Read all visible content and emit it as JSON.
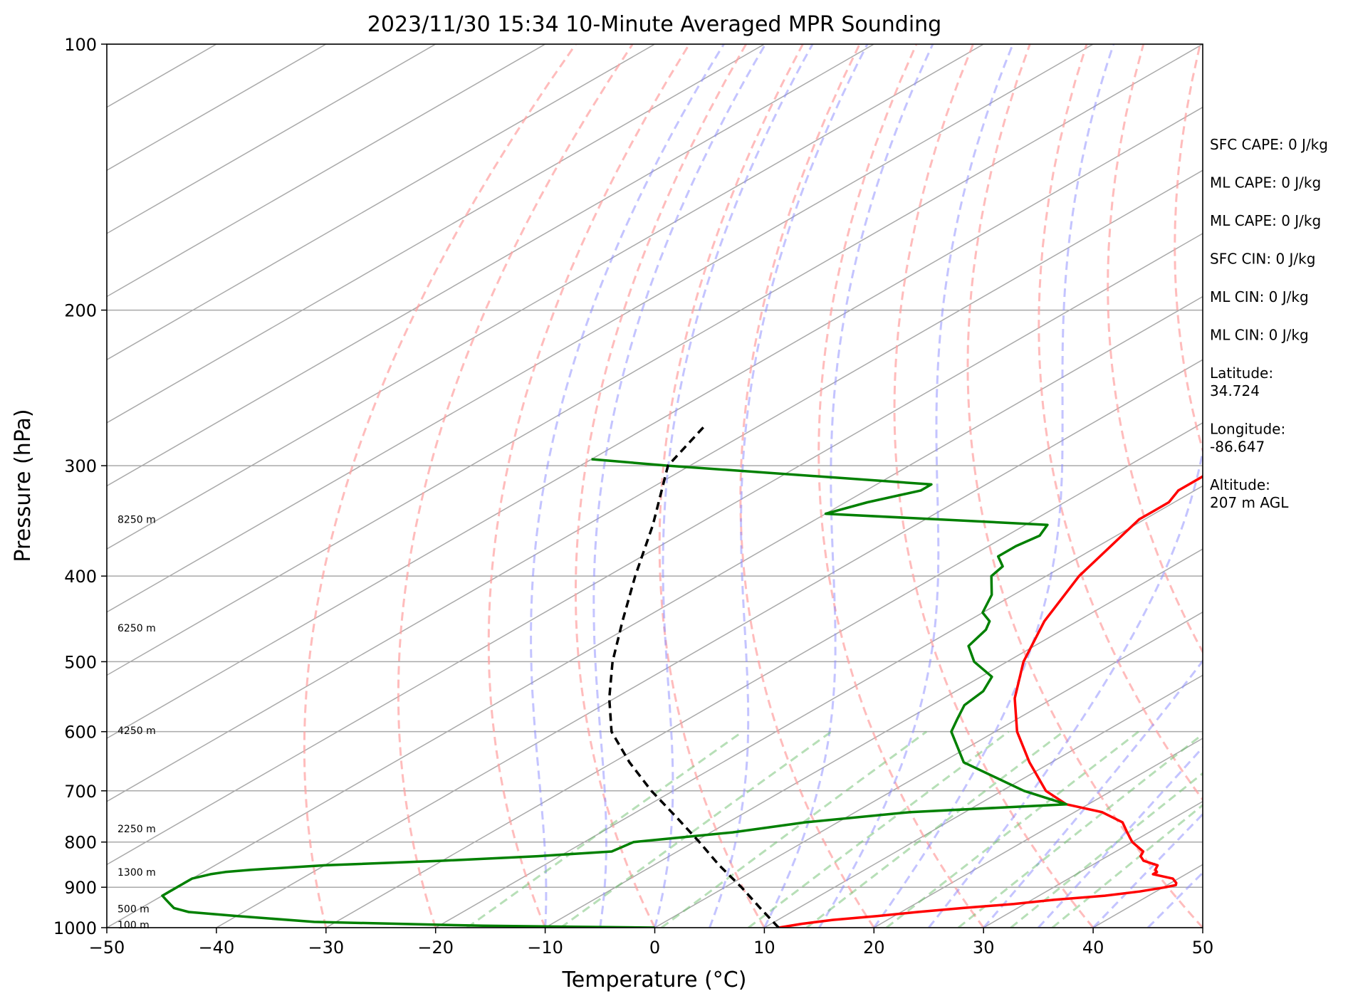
{
  "chart_data": {
    "type": "skew-t",
    "title": "2023/11/30 15:34 10-Minute Averaged MPR Sounding",
    "xlabel": "Temperature (°C)",
    "ylabel": "Pressure (hPa)",
    "xlim": [
      -50,
      50
    ],
    "ylim_hpa": [
      1000,
      100
    ],
    "y_scale": "log",
    "skew_deg_per_log10": 140,
    "x_ticks": [
      -50,
      -40,
      -30,
      -20,
      -10,
      0,
      10,
      20,
      30,
      40,
      50
    ],
    "x_tick_labels": [
      "−50",
      "−40",
      "−30",
      "−20",
      "−10",
      "0",
      "10",
      "20",
      "30",
      "40",
      "50"
    ],
    "y_ticks": [
      1000,
      900,
      800,
      700,
      600,
      500,
      400,
      300,
      200,
      100
    ],
    "y_tick_labels": [
      "1000",
      "900",
      "800",
      "700",
      "600",
      "500",
      "400",
      "300",
      "200",
      "100"
    ],
    "isotherms_c": [
      -180,
      -170,
      -160,
      -150,
      -140,
      -130,
      -120,
      -110,
      -100,
      -90,
      -80,
      -70,
      -60,
      -50,
      -40,
      -30,
      -20,
      -10,
      0,
      10,
      20,
      30,
      40,
      50
    ],
    "dry_adiabats_theta_c": [
      -30,
      -20,
      -10,
      0,
      10,
      20,
      30,
      40,
      50,
      60,
      70,
      80,
      90,
      100,
      110,
      120,
      130,
      140,
      150,
      160
    ],
    "moist_adiabats_start_c": [
      -10,
      -5,
      0,
      5,
      10,
      15,
      20,
      25,
      30,
      35,
      40,
      45
    ],
    "mixing_ratios_gkg": [
      1,
      2,
      4,
      7,
      10,
      16,
      24,
      32,
      40
    ],
    "height_labels": [
      {
        "text": "100 m",
        "p": 993
      },
      {
        "text": "500 m",
        "p": 952
      },
      {
        "text": "1300 m",
        "p": 865
      },
      {
        "text": "2250 m",
        "p": 773
      },
      {
        "text": "4250 m",
        "p": 598
      },
      {
        "text": "6250 m",
        "p": 458
      },
      {
        "text": "8250 m",
        "p": 345
      }
    ],
    "series": [
      {
        "name": "",
        "color": "#ff0000",
        "p": [
          1000,
          990,
          980,
          970,
          960,
          950,
          940,
          930,
          920,
          910,
          900,
          895,
          890,
          880,
          870,
          865,
          860,
          850,
          840,
          830,
          820,
          800,
          780,
          760,
          740,
          725,
          700,
          650,
          600,
          550,
          500,
          450,
          400,
          360,
          345,
          340,
          330,
          320,
          315,
          305,
          300,
          290,
          270
        ],
        "t": [
          11.3,
          12.8,
          15,
          18.5,
          21.5,
          25,
          29,
          32,
          36,
          38.5,
          40.2,
          40.8,
          40.5,
          39.5,
          37,
          37,
          36.5,
          36,
          34,
          33,
          32.5,
          30,
          28,
          26,
          22.5,
          18,
          14,
          8,
          2,
          -3.5,
          -8.5,
          -13,
          -17,
          -19.5,
          -20.5,
          -20.5,
          -20.5,
          -21.5,
          -21.5,
          -21.5,
          -21.5,
          -22,
          -24.8
        ]
      },
      {
        "name": "",
        "color": "#008000",
        "p": [
          1000,
          995,
          985,
          970,
          960,
          950,
          940,
          930,
          920,
          910,
          900,
          890,
          880,
          870,
          865,
          860,
          850,
          840,
          830,
          820,
          800,
          780,
          760,
          740,
          725,
          700,
          650,
          600,
          580,
          560,
          540,
          520,
          500,
          480,
          460,
          450,
          440,
          420,
          400,
          390,
          380,
          370,
          360,
          350,
          340,
          330,
          320,
          315,
          300,
          295
        ],
        "td": [
          0,
          -16,
          -32,
          -40,
          -45,
          -47,
          -48,
          -49,
          -50,
          -50,
          -50,
          -50,
          -50,
          -49,
          -48,
          -46,
          -40,
          -30,
          -22,
          -16,
          -15.5,
          -8,
          -3,
          5,
          18,
          12,
          2,
          -4,
          -5.5,
          -7,
          -7.5,
          -9,
          -13,
          -16,
          -17,
          -18,
          -20,
          -22,
          -25,
          -25.5,
          -27.5,
          -27.5,
          -27,
          -28,
          -50,
          -48,
          -45,
          -45,
          -72,
          -80
        ]
      },
      {
        "name": "",
        "color": "#000000",
        "p": [
          1000,
          950,
          900,
          850,
          800,
          750,
          700,
          650,
          600,
          550,
          500,
          450,
          400,
          350,
          300,
          270
        ],
        "t": [
          11.3,
          6.5,
          1.5,
          -4,
          -9.5,
          -15.5,
          -22,
          -28.5,
          -35,
          -40.5,
          -46,
          -51.5,
          -57.5,
          -64,
          -72,
          -75
        ]
      }
    ],
    "annotations": [
      {
        "text": "SFC CAPE: 0 J/kg"
      },
      {
        "text": "ML CAPE: 0 J/kg"
      },
      {
        "text": "ML CAPE: 0 J/kg"
      },
      {
        "text": "SFC CIN: 0 J/kg"
      },
      {
        "text": "ML CIN: 0 J/kg"
      },
      {
        "text": "ML CIN: 0 J/kg"
      },
      {
        "text": "Latitude:\n34.724"
      },
      {
        "text": "Longitude:\n-86.647"
      },
      {
        "text": "Altitude:\n207 m AGL"
      }
    ]
  }
}
